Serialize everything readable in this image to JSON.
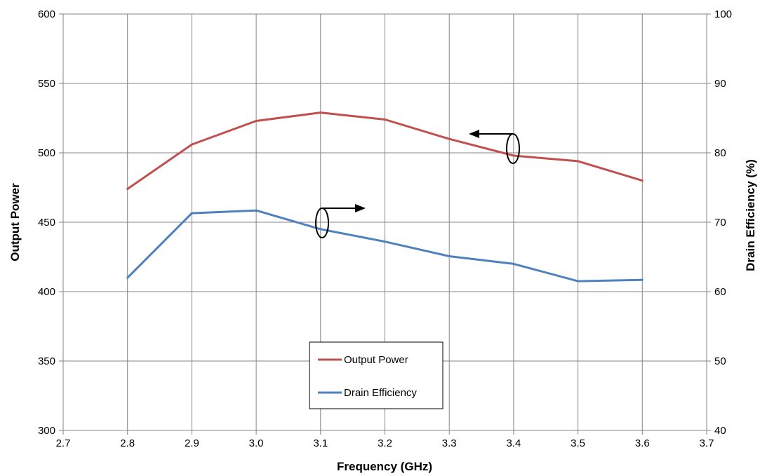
{
  "chart_data": {
    "type": "line",
    "title": "",
    "xlabel": "Frequency (GHz)",
    "ylabel": "Output Power",
    "y2label": "Drain Efficiency (%)",
    "xlim": [
      2.7,
      3.7
    ],
    "ylim": [
      300,
      600
    ],
    "y2lim": [
      40,
      100
    ],
    "x_ticks": [
      "2.7",
      "2.8",
      "2.9",
      "3.0",
      "3.1",
      "3.2",
      "3.3",
      "3.4",
      "3.5",
      "3.6",
      "3.7"
    ],
    "y_ticks": [
      "300",
      "350",
      "400",
      "450",
      "500",
      "550",
      "600"
    ],
    "y2_ticks": [
      "40",
      "50",
      "60",
      "70",
      "80",
      "90",
      "100"
    ],
    "grid": true,
    "legend_position": "bottom-center",
    "x": [
      2.8,
      2.9,
      3.0,
      3.1,
      3.2,
      3.3,
      3.4,
      3.5,
      3.6
    ],
    "series": [
      {
        "name": "Output Power",
        "axis": "left",
        "color": "#c0504d",
        "values": [
          474,
          506,
          523,
          529,
          524,
          510,
          498,
          494,
          480
        ]
      },
      {
        "name": "Drain Efficiency",
        "axis": "right",
        "color": "#4f81bd",
        "values": [
          62.0,
          71.3,
          71.7,
          69.0,
          67.2,
          65.1,
          64.0,
          61.5,
          61.7
        ]
      }
    ]
  }
}
